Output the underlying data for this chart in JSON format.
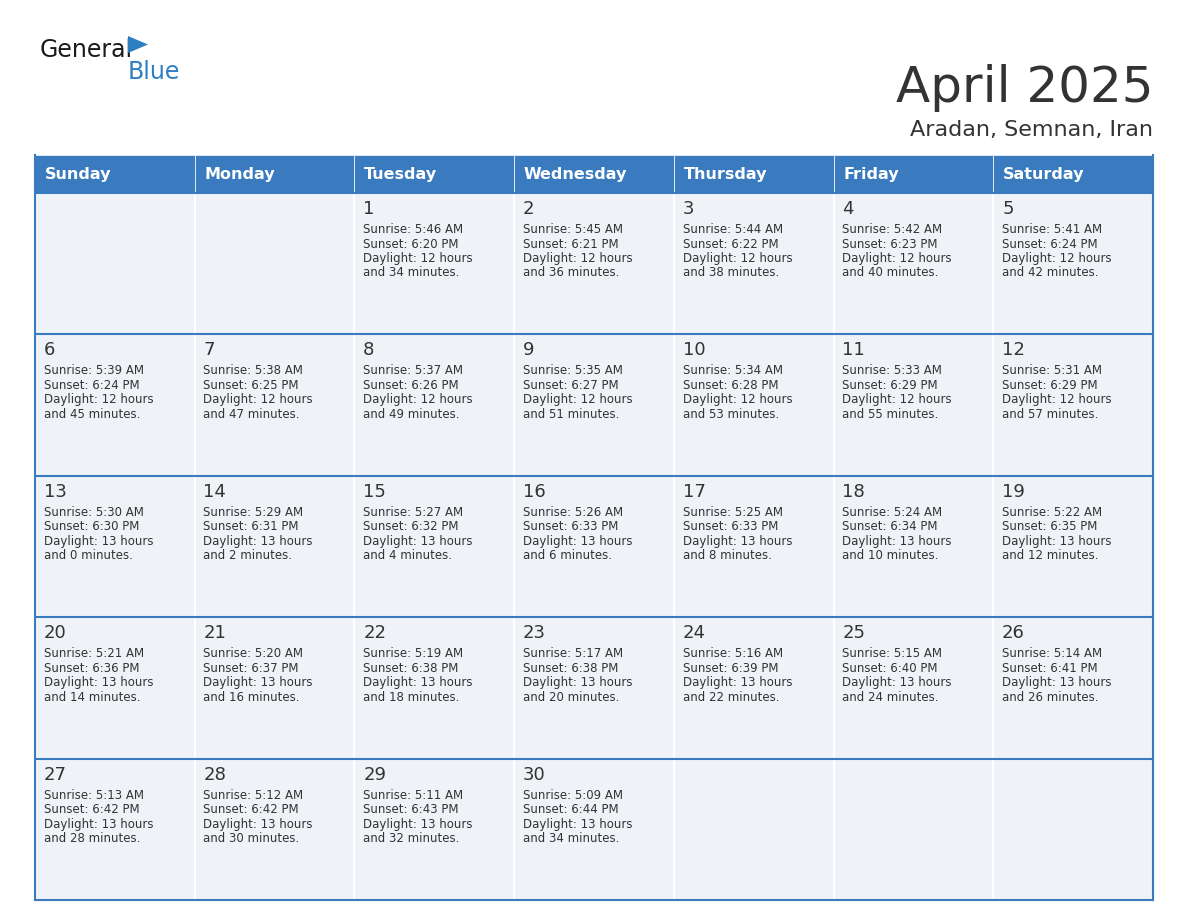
{
  "title": "April 2025",
  "subtitle": "Aradan, Semnan, Iran",
  "days_of_week": [
    "Sunday",
    "Monday",
    "Tuesday",
    "Wednesday",
    "Thursday",
    "Friday",
    "Saturday"
  ],
  "header_bg": "#3a7abf",
  "header_text": "#ffffff",
  "cell_bg_light": "#eff3f8",
  "border_color": "#3a7abf",
  "text_color": "#333333",
  "calendar": [
    [
      {
        "day": "",
        "sunrise": "",
        "sunset": "",
        "daylight": ""
      },
      {
        "day": "",
        "sunrise": "",
        "sunset": "",
        "daylight": ""
      },
      {
        "day": "1",
        "sunrise": "5:46 AM",
        "sunset": "6:20 PM",
        "daylight": "12 hours and 34 minutes."
      },
      {
        "day": "2",
        "sunrise": "5:45 AM",
        "sunset": "6:21 PM",
        "daylight": "12 hours and 36 minutes."
      },
      {
        "day": "3",
        "sunrise": "5:44 AM",
        "sunset": "6:22 PM",
        "daylight": "12 hours and 38 minutes."
      },
      {
        "day": "4",
        "sunrise": "5:42 AM",
        "sunset": "6:23 PM",
        "daylight": "12 hours and 40 minutes."
      },
      {
        "day": "5",
        "sunrise": "5:41 AM",
        "sunset": "6:24 PM",
        "daylight": "12 hours and 42 minutes."
      }
    ],
    [
      {
        "day": "6",
        "sunrise": "5:39 AM",
        "sunset": "6:24 PM",
        "daylight": "12 hours and 45 minutes."
      },
      {
        "day": "7",
        "sunrise": "5:38 AM",
        "sunset": "6:25 PM",
        "daylight": "12 hours and 47 minutes."
      },
      {
        "day": "8",
        "sunrise": "5:37 AM",
        "sunset": "6:26 PM",
        "daylight": "12 hours and 49 minutes."
      },
      {
        "day": "9",
        "sunrise": "5:35 AM",
        "sunset": "6:27 PM",
        "daylight": "12 hours and 51 minutes."
      },
      {
        "day": "10",
        "sunrise": "5:34 AM",
        "sunset": "6:28 PM",
        "daylight": "12 hours and 53 minutes."
      },
      {
        "day": "11",
        "sunrise": "5:33 AM",
        "sunset": "6:29 PM",
        "daylight": "12 hours and 55 minutes."
      },
      {
        "day": "12",
        "sunrise": "5:31 AM",
        "sunset": "6:29 PM",
        "daylight": "12 hours and 57 minutes."
      }
    ],
    [
      {
        "day": "13",
        "sunrise": "5:30 AM",
        "sunset": "6:30 PM",
        "daylight": "13 hours and 0 minutes."
      },
      {
        "day": "14",
        "sunrise": "5:29 AM",
        "sunset": "6:31 PM",
        "daylight": "13 hours and 2 minutes."
      },
      {
        "day": "15",
        "sunrise": "5:27 AM",
        "sunset": "6:32 PM",
        "daylight": "13 hours and 4 minutes."
      },
      {
        "day": "16",
        "sunrise": "5:26 AM",
        "sunset": "6:33 PM",
        "daylight": "13 hours and 6 minutes."
      },
      {
        "day": "17",
        "sunrise": "5:25 AM",
        "sunset": "6:33 PM",
        "daylight": "13 hours and 8 minutes."
      },
      {
        "day": "18",
        "sunrise": "5:24 AM",
        "sunset": "6:34 PM",
        "daylight": "13 hours and 10 minutes."
      },
      {
        "day": "19",
        "sunrise": "5:22 AM",
        "sunset": "6:35 PM",
        "daylight": "13 hours and 12 minutes."
      }
    ],
    [
      {
        "day": "20",
        "sunrise": "5:21 AM",
        "sunset": "6:36 PM",
        "daylight": "13 hours and 14 minutes."
      },
      {
        "day": "21",
        "sunrise": "5:20 AM",
        "sunset": "6:37 PM",
        "daylight": "13 hours and 16 minutes."
      },
      {
        "day": "22",
        "sunrise": "5:19 AM",
        "sunset": "6:38 PM",
        "daylight": "13 hours and 18 minutes."
      },
      {
        "day": "23",
        "sunrise": "5:17 AM",
        "sunset": "6:38 PM",
        "daylight": "13 hours and 20 minutes."
      },
      {
        "day": "24",
        "sunrise": "5:16 AM",
        "sunset": "6:39 PM",
        "daylight": "13 hours and 22 minutes."
      },
      {
        "day": "25",
        "sunrise": "5:15 AM",
        "sunset": "6:40 PM",
        "daylight": "13 hours and 24 minutes."
      },
      {
        "day": "26",
        "sunrise": "5:14 AM",
        "sunset": "6:41 PM",
        "daylight": "13 hours and 26 minutes."
      }
    ],
    [
      {
        "day": "27",
        "sunrise": "5:13 AM",
        "sunset": "6:42 PM",
        "daylight": "13 hours and 28 minutes."
      },
      {
        "day": "28",
        "sunrise": "5:12 AM",
        "sunset": "6:42 PM",
        "daylight": "13 hours and 30 minutes."
      },
      {
        "day": "29",
        "sunrise": "5:11 AM",
        "sunset": "6:43 PM",
        "daylight": "13 hours and 32 minutes."
      },
      {
        "day": "30",
        "sunrise": "5:09 AM",
        "sunset": "6:44 PM",
        "daylight": "13 hours and 34 minutes."
      },
      {
        "day": "",
        "sunrise": "",
        "sunset": "",
        "daylight": ""
      },
      {
        "day": "",
        "sunrise": "",
        "sunset": "",
        "daylight": ""
      },
      {
        "day": "",
        "sunrise": "",
        "sunset": "",
        "daylight": ""
      }
    ]
  ],
  "logo_general_color": "#1a1a1a",
  "logo_blue_color": "#2e7fc2",
  "logo_triangle_color": "#2e7fc2"
}
